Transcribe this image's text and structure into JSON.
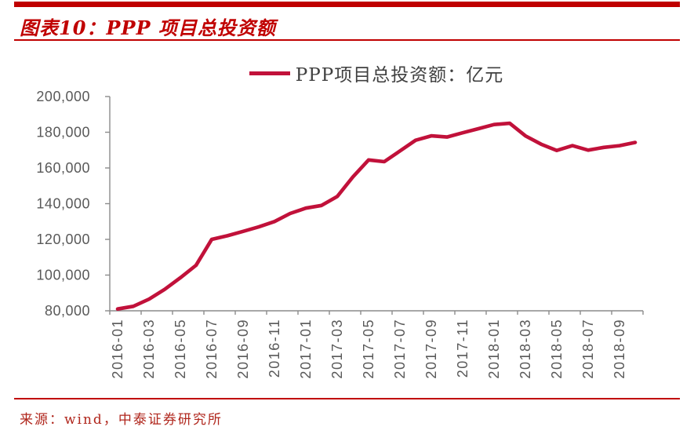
{
  "header": {
    "title": "图表10：PPP 项目总投资额"
  },
  "footer": {
    "source": "来源：wind，中泰证券研究所"
  },
  "colors": {
    "accent": "#C00000",
    "series_line": "#C1113A",
    "source_text": "#B0261C",
    "axis": "#8C8C8C",
    "tick_label": "#595959",
    "legend_text": "#404040"
  },
  "chart_data": {
    "type": "line",
    "legend": "PPP项目总投资额：亿元",
    "legend_position": "top",
    "unit": "亿元",
    "grid": false,
    "ylim": [
      80000,
      200000
    ],
    "yticks": [
      80000,
      100000,
      120000,
      140000,
      160000,
      180000,
      200000
    ],
    "ytick_labels": [
      "80,000",
      "100,000",
      "120,000",
      "140,000",
      "160,000",
      "180,000",
      "200,000"
    ],
    "x": [
      "2016-01",
      "2016-02",
      "2016-03",
      "2016-04",
      "2016-05",
      "2016-06",
      "2016-07",
      "2016-08",
      "2016-09",
      "2016-10",
      "2016-11",
      "2016-12",
      "2017-01",
      "2017-02",
      "2017-03",
      "2017-04",
      "2017-05",
      "2017-06",
      "2017-07",
      "2017-08",
      "2017-09",
      "2017-10",
      "2017-11",
      "2017-12",
      "2018-01",
      "2018-02",
      "2018-03",
      "2018-04",
      "2018-05",
      "2018-06",
      "2018-07",
      "2018-08",
      "2018-09",
      "2018-10"
    ],
    "x_tick_labels": [
      "2016-01",
      "2016-03",
      "2016-05",
      "2016-07",
      "2016-09",
      "2016-11",
      "2017-01",
      "2017-03",
      "2017-05",
      "2017-07",
      "2017-09",
      "2017-11",
      "2018-01",
      "2018-03",
      "2018-05",
      "2018-07",
      "2018-09"
    ],
    "values": [
      81000,
      82500,
      86500,
      92000,
      98500,
      105500,
      120000,
      122000,
      124500,
      127000,
      130000,
      134500,
      137500,
      139000,
      144000,
      155000,
      164500,
      163500,
      169500,
      175500,
      178000,
      177300,
      179700,
      182000,
      184300,
      185000,
      178000,
      173300,
      169800,
      172500,
      170000,
      171500,
      172500,
      174300
    ]
  }
}
